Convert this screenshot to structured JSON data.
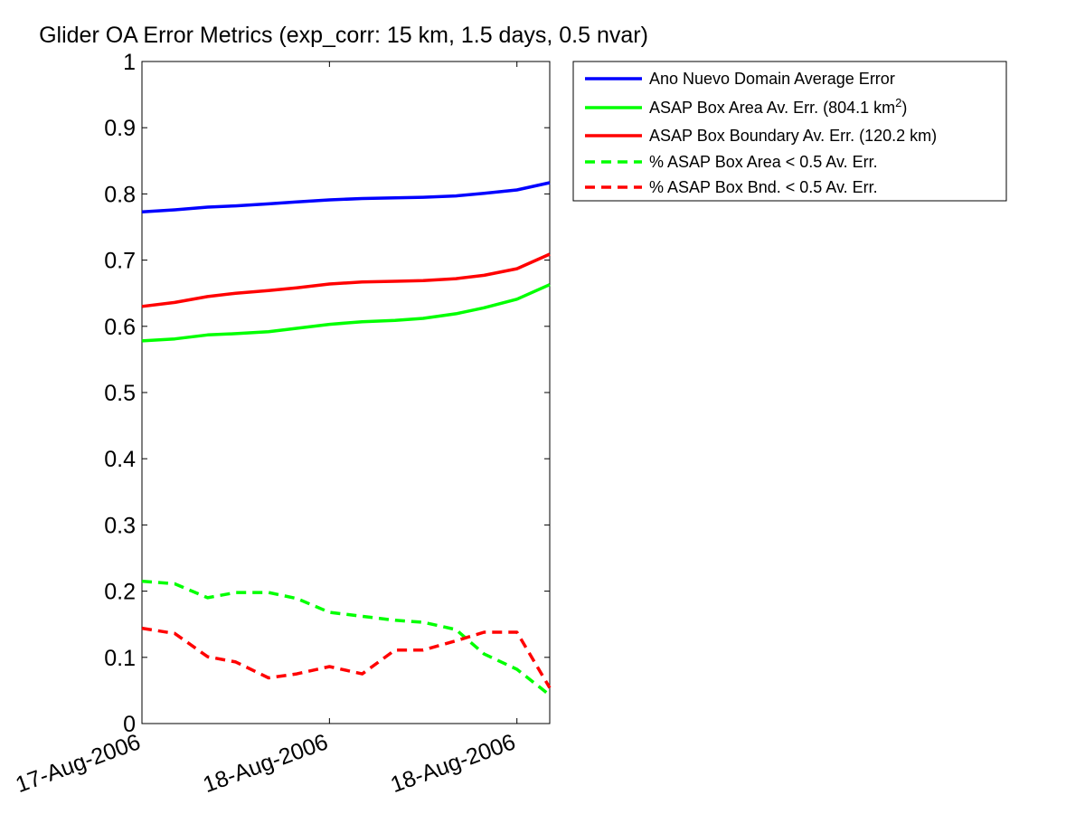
{
  "chart_data": {
    "type": "line",
    "title": "Glider OA Error Metrics (exp_corr: 15 km, 1.5 days, 0.5 nvar)",
    "ylim": [
      0,
      1
    ],
    "yticks": [
      "0",
      "0.1",
      "0.2",
      "0.3",
      "0.4",
      "0.5",
      "0.6",
      "0.7",
      "0.8",
      "0.9",
      "1"
    ],
    "xlim": [
      0,
      1.0875
    ],
    "xticks": [
      {
        "value": 0,
        "label": "17-Aug-2006"
      },
      {
        "value": 0.5,
        "label": "18-Aug-2006"
      },
      {
        "value": 1,
        "label": "18-Aug-2006"
      }
    ],
    "x": [
      0,
      0.0875,
      0.175,
      0.25,
      0.3375,
      0.4125,
      0.5,
      0.5875,
      0.675,
      0.75,
      0.8375,
      0.9125,
      1.0,
      1.0875
    ],
    "grid": false,
    "legend_position": "outside-top-right",
    "series": [
      {
        "name": "Ano Nuevo Domain Average Error",
        "color": "#0000ff",
        "dash": "solid",
        "values": [
          0.773,
          0.776,
          0.78,
          0.782,
          0.785,
          0.788,
          0.791,
          0.793,
          0.794,
          0.795,
          0.797,
          0.801,
          0.806,
          0.817
        ]
      },
      {
        "name": "ASAP Box Area Av. Err. (804.1 km",
        "name_superscript": "2",
        "name_suffix": ")",
        "color": "#00ff00",
        "dash": "solid",
        "values": [
          0.578,
          0.581,
          0.587,
          0.589,
          0.592,
          0.597,
          0.603,
          0.607,
          0.609,
          0.612,
          0.619,
          0.628,
          0.641,
          0.663
        ]
      },
      {
        "name": "ASAP Box Boundary Av. Err. (120.2 km)",
        "color": "#ff0000",
        "dash": "solid",
        "values": [
          0.63,
          0.636,
          0.645,
          0.65,
          0.654,
          0.658,
          0.664,
          0.667,
          0.668,
          0.669,
          0.672,
          0.677,
          0.687,
          0.709
        ]
      },
      {
        "name": "% ASAP Box Area < 0.5 Av. Err.",
        "color": "#00ff00",
        "dash": "dashed",
        "values": [
          0.215,
          0.211,
          0.19,
          0.198,
          0.198,
          0.189,
          0.168,
          0.162,
          0.156,
          0.153,
          0.142,
          0.105,
          0.082,
          0.043
        ]
      },
      {
        "name": "% ASAP Box Bnd. < 0.5 Av. Err.",
        "color": "#ff0000",
        "dash": "dashed",
        "values": [
          0.144,
          0.136,
          0.101,
          0.093,
          0.069,
          0.075,
          0.086,
          0.075,
          0.111,
          0.111,
          0.125,
          0.138,
          0.138,
          0.054
        ]
      }
    ]
  }
}
